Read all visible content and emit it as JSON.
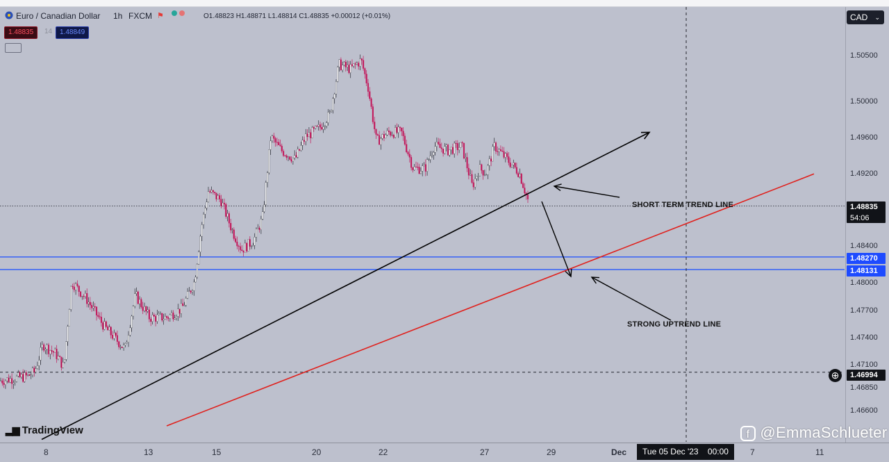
{
  "header": {
    "symbol": "Euro / Canadian Dollar",
    "interval": "1h",
    "exchange": "FXCM",
    "ohlc": "O1.48823 H1.48871 L1.48814 C1.48835 +0.00012 (+0.01%)",
    "sell_price": "1.48835",
    "buy_price": "1.48849",
    "spread_label": "14"
  },
  "currency_button": "CAD",
  "price_axis": {
    "labels": [
      "1.50500",
      "1.50000",
      "1.49600",
      "1.49200",
      "1.48400",
      "1.48000",
      "1.47700",
      "1.47400",
      "1.47100",
      "1.46850",
      "1.46600"
    ],
    "current_price": "1.48835",
    "countdown": "54:06",
    "level_upper": "1.48270",
    "level_lower": "1.48131",
    "crosshair_price": "1.46994"
  },
  "time_axis": {
    "labels": [
      "8",
      "13",
      "15",
      "20",
      "22",
      "27",
      "29",
      "Dec",
      "7",
      "11"
    ],
    "crosshair_time": "Tue 05 Dec '23    00:00"
  },
  "annotations": {
    "short_term": "SHORT TERM TREND LINE",
    "strong_uptrend": "STRONG UPTREND LINE"
  },
  "brand": "TradingView",
  "watermark": "@EmmaSchlueter",
  "colors": {
    "background": "#bdc0cd",
    "candle_up": "#ffffff",
    "candle_down": "#c2185b",
    "support_lines": "#1a4cff",
    "short_trend": "#000000",
    "strong_trend": "#e0201c"
  },
  "chart_data": {
    "type": "candlestick",
    "instrument": "Euro / Canadian Dollar",
    "timeframe": "1h",
    "ylim": [
      1.464,
      1.5094
    ],
    "y_ticks": [
      1.505,
      1.5,
      1.496,
      1.492,
      1.484,
      1.48,
      1.477,
      1.474,
      1.471,
      1.4685,
      1.466
    ],
    "x_ticks": [
      "8",
      "13",
      "15",
      "20",
      "22",
      "27",
      "29",
      "Dec",
      "7",
      "11"
    ],
    "price_path": [
      [
        0,
        1.469
      ],
      [
        40,
        1.4695
      ],
      [
        50,
        1.47
      ],
      [
        62,
        1.473
      ],
      [
        80,
        1.472
      ],
      [
        92,
        1.4705
      ],
      [
        103,
        1.48
      ],
      [
        125,
        1.478
      ],
      [
        150,
        1.475
      ],
      [
        180,
        1.4725
      ],
      [
        195,
        1.4785
      ],
      [
        215,
        1.476
      ],
      [
        240,
        1.476
      ],
      [
        262,
        1.477
      ],
      [
        280,
        1.48
      ],
      [
        290,
        1.486
      ],
      [
        300,
        1.49
      ],
      [
        318,
        1.489
      ],
      [
        335,
        1.4855
      ],
      [
        348,
        1.4835
      ],
      [
        365,
        1.4845
      ],
      [
        378,
        1.487
      ],
      [
        390,
        1.496
      ],
      [
        405,
        1.4945
      ],
      [
        425,
        1.4935
      ],
      [
        440,
        1.496
      ],
      [
        460,
        1.497
      ],
      [
        475,
        1.4985
      ],
      [
        488,
        1.504
      ],
      [
        505,
        1.5035
      ],
      [
        520,
        1.5045
      ],
      [
        530,
        1.5015
      ],
      [
        542,
        1.4955
      ],
      [
        560,
        1.4965
      ],
      [
        578,
        1.4965
      ],
      [
        595,
        1.4925
      ],
      [
        612,
        1.4925
      ],
      [
        625,
        1.495
      ],
      [
        645,
        1.4945
      ],
      [
        665,
        1.495
      ],
      [
        680,
        1.4905
      ],
      [
        690,
        1.4925
      ],
      [
        700,
        1.492
      ],
      [
        712,
        1.495
      ],
      [
        730,
        1.4935
      ],
      [
        748,
        1.492
      ],
      [
        762,
        1.4885
      ]
    ],
    "horizontal_levels": [
      1.48835,
      1.4827,
      1.48131,
      1.46994
    ],
    "trend_lines": [
      {
        "name": "SHORT TERM TREND LINE",
        "from": [
          60,
          1.4625
        ],
        "to": [
          935,
          1.4965
        ]
      },
      {
        "name": "STRONG UPTREND LINE",
        "from": [
          240,
          1.464
        ],
        "to": [
          1172,
          1.4919
        ]
      }
    ]
  }
}
